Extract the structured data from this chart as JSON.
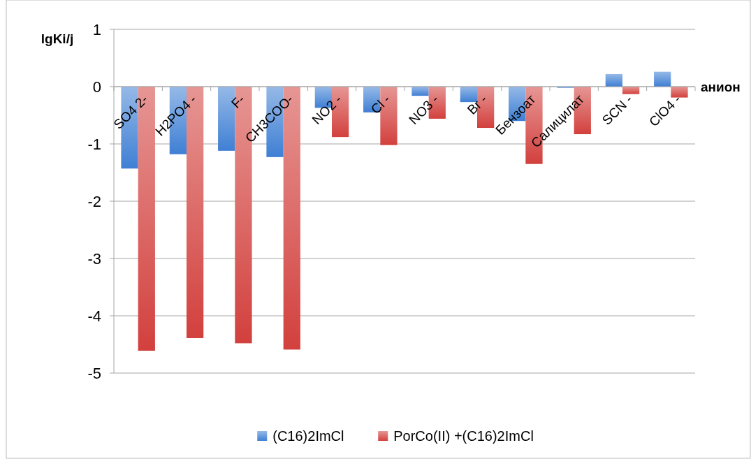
{
  "chart_data": {
    "type": "bar",
    "xlabel": "анион",
    "ylabel": "lgKi/j",
    "categories": [
      "SO4 2-",
      "H2PO4 -",
      "F-",
      "CH3COO-",
      "NO2 -",
      "Cl -",
      "NO3 -",
      "Br -",
      "Бензоат",
      "Салицилат",
      "SCN -",
      "ClO4 -"
    ],
    "series": [
      {
        "name": "(C16)2ImCl",
        "color": "#3f7fd4",
        "values": [
          -1.43,
          -1.18,
          -1.12,
          -1.23,
          -0.37,
          -0.45,
          -0.16,
          -0.27,
          -0.6,
          -0.02,
          0.22,
          0.26
        ]
      },
      {
        "name": "PorCo(II) +(C16)2ImCl",
        "color": "#d2403d",
        "values": [
          -4.61,
          -4.39,
          -4.48,
          -4.59,
          -0.88,
          -1.02,
          -0.56,
          -0.72,
          -1.35,
          -0.83,
          -0.13,
          -0.19
        ]
      }
    ],
    "ylim": [
      -5,
      1
    ],
    "yticks": [
      -5,
      -4,
      -3,
      -2,
      -1,
      0,
      1
    ],
    "grid": "y",
    "legend": "bottom"
  }
}
